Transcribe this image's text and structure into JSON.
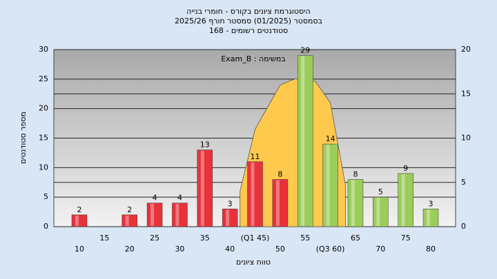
{
  "chart_data": {
    "type": "bar",
    "title_lines": [
      "היסטוגרמת ציונים בקורס - חומרי בנייה",
      "בסמסטר  (01/2025)  סמסטר חורף 2025/26",
      "סטודנטים רשומים - 168"
    ],
    "annotation": "Exam_B : במשימה",
    "x_label": "טווח ציונים",
    "y_label": "מספר סטודנטים",
    "categories": [
      "10",
      "15",
      "20",
      "25",
      "30",
      "35",
      "40",
      "(Q1 45)",
      "50",
      "55",
      "(Q3 60)",
      "65",
      "70",
      "75",
      "80"
    ],
    "values": [
      2,
      null,
      2,
      4,
      4,
      13,
      3,
      11,
      8,
      29,
      14,
      8,
      5,
      9,
      3
    ],
    "colors": [
      "#e8323a",
      "#e8323a",
      "#e8323a",
      "#e8323a",
      "#e8323a",
      "#e8323a",
      "#e8323a",
      "#e8323a",
      "#e8323a",
      "#9ccc5a",
      "#9ccc5a",
      "#9ccc5a",
      "#9ccc5a",
      "#9ccc5a",
      "#9ccc5a"
    ],
    "ylim": [
      0,
      30
    ],
    "yticks": [
      0,
      5,
      10,
      15,
      20,
      25,
      30
    ],
    "y2lim": [
      0,
      20
    ],
    "y2ticks": [
      0,
      5,
      10,
      15,
      20
    ],
    "curve": {
      "x": [
        42,
        45,
        50,
        53,
        57,
        60,
        63
      ],
      "values": [
        4,
        11,
        16,
        16.7,
        16.4,
        14,
        4.7
      ],
      "color": "#ffc94d",
      "axis": "y2"
    },
    "grid": true
  }
}
